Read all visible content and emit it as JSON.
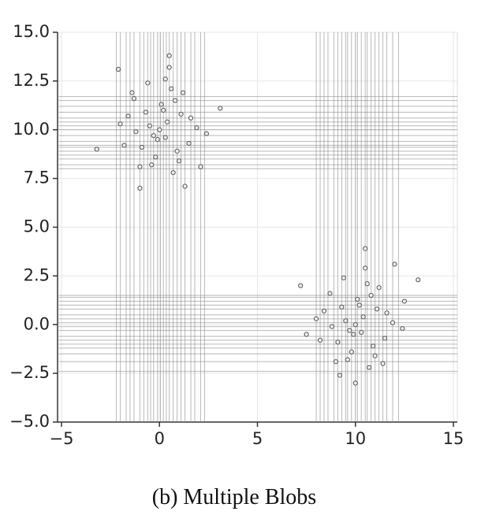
{
  "chart_data": {
    "type": "scatter",
    "caption": "(b) Multiple Blobs",
    "xlim": [
      -5,
      15
    ],
    "ylim": [
      -5,
      15
    ],
    "xticks": [
      {
        "value": -5,
        "label": "−5"
      },
      0,
      5,
      10,
      15
    ],
    "yticks": [
      {
        "value": -5,
        "label": "−5.0"
      },
      {
        "value": -2.5,
        "label": "−2.5"
      },
      {
        "value": 0,
        "label": "0.0"
      },
      2.5,
      {
        "value": 5,
        "label": "5.0"
      },
      7.5,
      {
        "value": 10,
        "label": "10.0"
      },
      12.5,
      {
        "value": 15,
        "label": "15.0"
      }
    ],
    "grid": true,
    "color": "#555555",
    "line_color": "#888888",
    "x": [
      -0.5,
      0.3,
      1.1,
      -1.2,
      0.8,
      -0.2,
      0.0,
      1.5,
      -1.6,
      0.6,
      -0.9,
      0.2,
      1.9,
      -0.4,
      0.9,
      -1.3,
      0.4,
      -0.7,
      1.2,
      -0.1,
      0.7,
      -2.0,
      1.6,
      -0.6,
      0.1,
      -1.0,
      2.4,
      -1.8,
      0.5,
      1.0,
      -0.3,
      -2.1,
      0.5,
      3.1,
      -3.2,
      -1.0,
      1.3,
      -1.4,
      2.1,
      0.3,
      9.5,
      10.3,
      11.1,
      8.8,
      10.8,
      9.8,
      10.0,
      11.5,
      8.4,
      10.6,
      9.1,
      10.2,
      11.9,
      9.6,
      10.9,
      8.7,
      10.4,
      9.3,
      11.2,
      9.9,
      10.7,
      8.0,
      11.6,
      9.4,
      10.1,
      9.0,
      12.4,
      8.2,
      10.5,
      11.0,
      9.7,
      7.2,
      13.2,
      10.5,
      12.0,
      10.0,
      7.5,
      12.5,
      9.2,
      11.4
    ],
    "y": [
      10.2,
      9.6,
      10.8,
      9.9,
      11.5,
      8.6,
      10.0,
      9.3,
      10.7,
      12.1,
      9.1,
      11.0,
      10.1,
      8.2,
      8.9,
      11.6,
      10.4,
      10.9,
      11.9,
      9.5,
      7.8,
      10.3,
      10.6,
      12.4,
      11.3,
      8.1,
      9.8,
      9.2,
      13.2,
      8.4,
      9.7,
      13.1,
      13.8,
      11.1,
      9.0,
      7.0,
      7.1,
      11.9,
      8.1,
      12.6,
      0.2,
      -0.4,
      0.8,
      -0.1,
      1.5,
      -1.4,
      0.0,
      -0.7,
      0.7,
      2.1,
      -0.9,
      1.0,
      0.1,
      -1.8,
      -1.1,
      1.6,
      0.4,
      0.9,
      1.9,
      -0.5,
      -2.2,
      0.3,
      0.6,
      2.4,
      1.3,
      -1.9,
      -0.2,
      -0.8,
      2.9,
      -1.6,
      -0.3,
      2.0,
      2.3,
      3.9,
      3.1,
      -3.0,
      -0.5,
      1.2,
      -2.6,
      -2.0
    ],
    "vlines": [
      -2.2,
      -2.0,
      -1.7,
      -1.5,
      -1.3,
      -1.0,
      -0.8,
      -0.6,
      -0.45,
      -0.3,
      -0.1,
      0.05,
      0.2,
      0.35,
      0.5,
      0.7,
      0.9,
      1.1,
      1.3,
      1.6,
      1.8,
      2.1,
      2.3,
      8.0,
      8.2,
      8.4,
      8.6,
      8.9,
      9.1,
      9.3,
      9.5,
      9.6,
      9.8,
      10.0,
      10.1,
      10.3,
      10.5,
      10.6,
      10.8,
      11.0,
      11.2,
      11.4,
      11.6,
      11.9,
      12.2
    ],
    "hlines": [
      8.0,
      8.2,
      8.5,
      8.7,
      8.9,
      9.1,
      9.2,
      9.4,
      9.7,
      10.0,
      10.2,
      10.4,
      10.6,
      10.9,
      11.2,
      11.5,
      11.7,
      -2.4,
      -1.9,
      -1.5,
      -1.2,
      -1.0,
      -0.8,
      -0.6,
      -0.3,
      -0.1,
      0.1,
      0.3,
      0.5,
      0.8,
      1.0,
      1.2,
      1.4,
      1.5
    ]
  }
}
